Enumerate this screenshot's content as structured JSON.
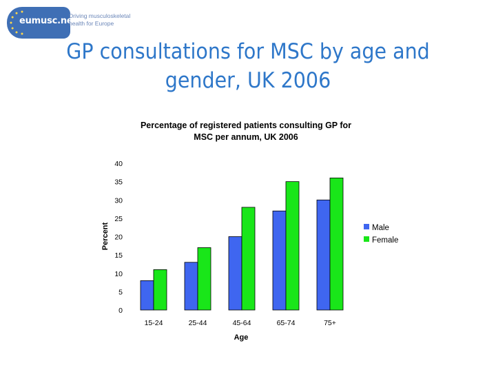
{
  "logo": {
    "name": "eumusc.net",
    "tagline_line1": "Driving musculoskeletal",
    "tagline_line2": "health for Europe",
    "color": "#3f6fb5"
  },
  "slide": {
    "title_line1": "GP consultations for MSC by age and",
    "title_line2": "gender, UK 2006",
    "title_color": "#2e77c9"
  },
  "chart_data": {
    "type": "bar",
    "title_line1": "Percentage of registered patients consulting GP for",
    "title_line2": "MSC per annum, UK 2006",
    "xlabel": "Age",
    "ylabel": "Percent",
    "categories": [
      "15-24",
      "25-44",
      "45-64",
      "65-74",
      "75+"
    ],
    "series": [
      {
        "name": "Male",
        "values": [
          8,
          13,
          20,
          27,
          30
        ],
        "color": "#3f66f0"
      },
      {
        "name": "Female",
        "values": [
          11,
          17,
          28,
          35,
          36
        ],
        "color": "#19e619"
      }
    ],
    "ylim": [
      0,
      40
    ],
    "yticks": [
      0,
      5,
      10,
      15,
      20,
      25,
      30,
      35,
      40
    ],
    "grid": false,
    "legend_position": "right"
  }
}
